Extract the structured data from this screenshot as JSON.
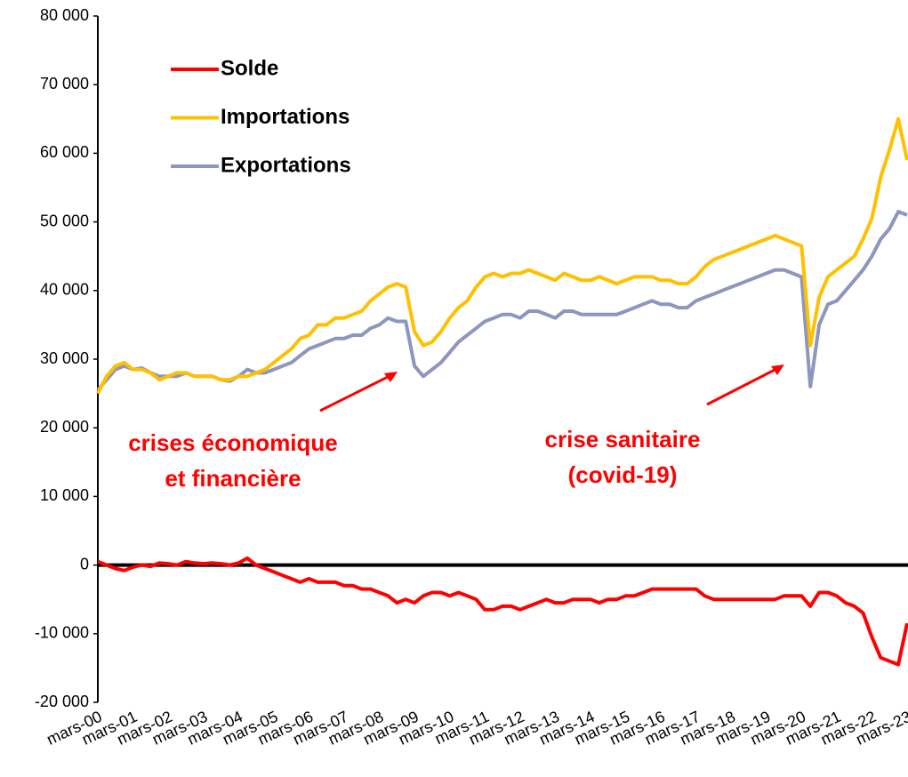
{
  "chart_data": {
    "type": "line",
    "categories": [
      "mars-00",
      null,
      null,
      null,
      "mars-01",
      null,
      null,
      null,
      "mars-02",
      null,
      null,
      null,
      "mars-03",
      null,
      null,
      null,
      "mars-04",
      null,
      null,
      null,
      "mars-05",
      null,
      null,
      null,
      "mars-06",
      null,
      null,
      null,
      "mars-07",
      null,
      null,
      null,
      "mars-08",
      null,
      null,
      null,
      "mars-09",
      null,
      null,
      null,
      "mars-10",
      null,
      null,
      null,
      "mars-11",
      null,
      null,
      null,
      "mars-12",
      null,
      null,
      null,
      "mars-13",
      null,
      null,
      null,
      "mars-14",
      null,
      null,
      null,
      "mars-15",
      null,
      null,
      null,
      "mars-16",
      null,
      null,
      null,
      "mars-17",
      null,
      null,
      null,
      "mars-18",
      null,
      null,
      null,
      "mars-19",
      null,
      null,
      null,
      "mars-20",
      null,
      null,
      null,
      "mars-21",
      null,
      null,
      null,
      "mars-22",
      null,
      null,
      null,
      "mars-23"
    ],
    "series": [
      {
        "name": "Solde",
        "color": "#ff0000",
        "values": [
          500,
          0,
          -500,
          -800,
          -300,
          0,
          -200,
          300,
          200,
          0,
          500,
          300,
          200,
          300,
          200,
          0,
          300,
          1000,
          0,
          -500,
          -1000,
          -1500,
          -2000,
          -2500,
          -2000,
          -2500,
          -2500,
          -2500,
          -3000,
          -3000,
          -3500,
          -3500,
          -4000,
          -4500,
          -5500,
          -5000,
          -5500,
          -4500,
          -4000,
          -4000,
          -4500,
          -4000,
          -4500,
          -5000,
          -6500,
          -6500,
          -6000,
          -6000,
          -6500,
          -6000,
          -5500,
          -5000,
          -5500,
          -5500,
          -5000,
          -5000,
          -5000,
          -5500,
          -5000,
          -5000,
          -4500,
          -4500,
          -4000,
          -3500,
          -3500,
          -3500,
          -3500,
          -3500,
          -3500,
          -4500,
          -5000,
          -5000,
          -5000,
          -5000,
          -5000,
          -5000,
          -5000,
          -5000,
          -4500,
          -4500,
          -4500,
          -6000,
          -4000,
          -4000,
          -4500,
          -5500,
          -6000,
          -7000,
          -10500,
          -13500,
          -14000,
          -14500,
          -8500
        ]
      },
      {
        "name": "Importations",
        "color": "#ffc000",
        "values": [
          25000,
          27500,
          29000,
          29500,
          28500,
          28500,
          28000,
          27000,
          27500,
          28000,
          28000,
          27500,
          27500,
          27500,
          27000,
          27000,
          27500,
          27500,
          28000,
          28500,
          29500,
          30500,
          31500,
          33000,
          33500,
          35000,
          35000,
          36000,
          36000,
          36500,
          37000,
          38500,
          39500,
          40500,
          41000,
          40500,
          34000,
          32000,
          32500,
          34000,
          36000,
          37500,
          38500,
          40500,
          42000,
          42500,
          42000,
          42500,
          42500,
          43000,
          42500,
          42000,
          41500,
          42500,
          42000,
          41500,
          41500,
          42000,
          41500,
          41000,
          41500,
          42000,
          42000,
          42000,
          41500,
          41500,
          41000,
          41000,
          42000,
          43500,
          44500,
          45000,
          45500,
          46000,
          46500,
          47000,
          47500,
          48000,
          47500,
          47000,
          46500,
          32000,
          39000,
          42000,
          43000,
          44000,
          45000,
          47500,
          50500,
          56500,
          60500,
          65000,
          59000
        ]
      },
      {
        "name": "Exportations",
        "color": "#8c96bf",
        "values": [
          25500,
          27000,
          28500,
          29000,
          28500,
          28700,
          28000,
          27500,
          27500,
          27500,
          28000,
          27500,
          27500,
          27500,
          27000,
          26800,
          27500,
          28500,
          28000,
          28000,
          28500,
          29000,
          29500,
          30500,
          31500,
          32000,
          32500,
          33000,
          33000,
          33500,
          33500,
          34500,
          35000,
          36000,
          35500,
          35500,
          29000,
          27500,
          28500,
          29500,
          31000,
          32500,
          33500,
          34500,
          35500,
          36000,
          36500,
          36500,
          36000,
          37000,
          37000,
          36500,
          36000,
          37000,
          37000,
          36500,
          36500,
          36500,
          36500,
          36500,
          37000,
          37500,
          38000,
          38500,
          38000,
          38000,
          37500,
          37500,
          38500,
          39000,
          39500,
          40000,
          40500,
          41000,
          41500,
          42000,
          42500,
          43000,
          43000,
          42500,
          42000,
          26000,
          35000,
          38000,
          38500,
          40000,
          41500,
          43000,
          45000,
          47500,
          49000,
          51500,
          51000
        ]
      }
    ],
    "ylim": [
      -20000,
      80000
    ],
    "yticks": [
      {
        "value": -20000,
        "label": "-20 000"
      },
      {
        "value": -10000,
        "label": "-10 000"
      },
      0,
      {
        "value": 10000,
        "label": "10 000"
      },
      {
        "value": 20000,
        "label": "20 000"
      },
      {
        "value": 30000,
        "label": "30 000"
      },
      {
        "value": 40000,
        "label": "40 000"
      },
      {
        "value": 50000,
        "label": "50 000"
      },
      {
        "value": 60000,
        "label": "60 000"
      },
      {
        "value": 70000,
        "label": "70 000"
      },
      {
        "value": 80000,
        "label": "80 000"
      }
    ],
    "grid": false,
    "legend": "top-left",
    "annotations": [
      {
        "lines": [
          "crises économique",
          "et financière"
        ],
        "color": "#ff0000"
      },
      {
        "lines": [
          "crise sanitaire",
          "(covid-19)"
        ],
        "color": "#ff0000"
      }
    ]
  }
}
